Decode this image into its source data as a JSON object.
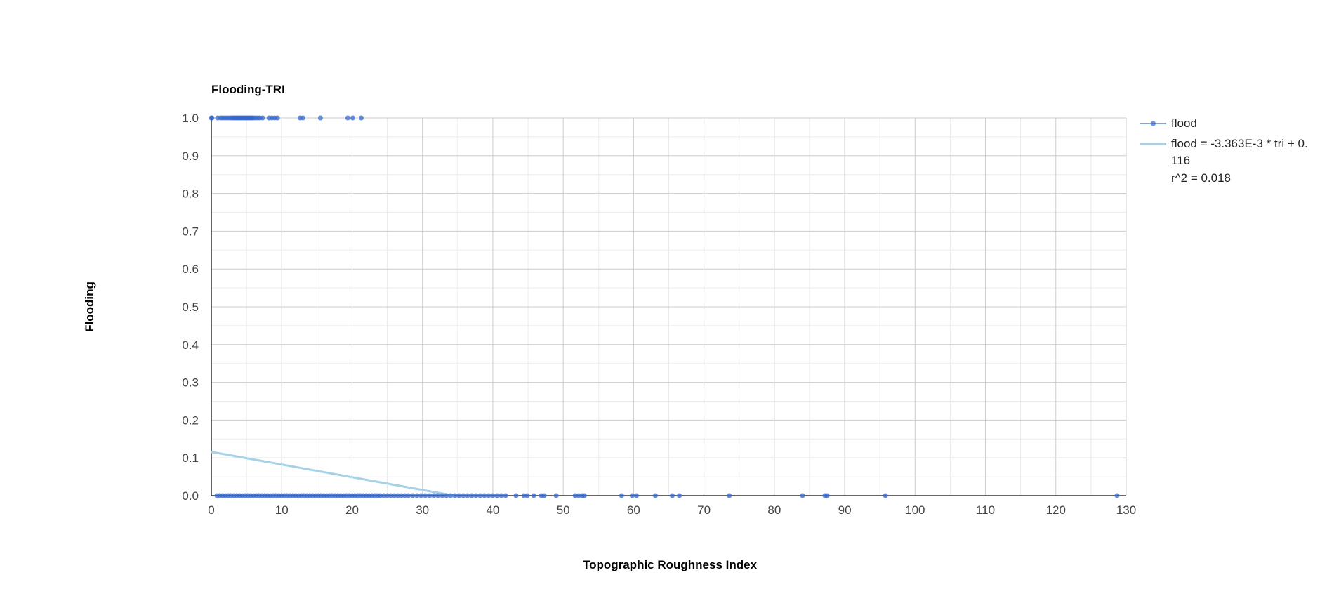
{
  "chart_data": {
    "type": "scatter",
    "title": "Flooding-TRI",
    "xlabel": "Topographic Roughness Index",
    "ylabel": "Flooding",
    "xlim": [
      0,
      130
    ],
    "ylim": [
      0,
      1
    ],
    "x_ticks": [
      "0",
      "10",
      "20",
      "30",
      "40",
      "50",
      "60",
      "70",
      "80",
      "90",
      "100",
      "110",
      "120",
      "130"
    ],
    "y_ticks": [
      "0.0",
      "0.1",
      "0.2",
      "0.3",
      "0.4",
      "0.5",
      "0.6",
      "0.7",
      "0.8",
      "0.9",
      "1.0"
    ],
    "grid": true,
    "legend_position": "right",
    "colors": {
      "points": "#3366cc",
      "trendline": "#a6d1e6",
      "grid_major": "#cccccc",
      "grid_minor": "#ebebeb",
      "axis": "#333333"
    },
    "series": [
      {
        "name": "flood",
        "points_y1_x": [
          0,
          0.1,
          0.9,
          1.3,
          1.6,
          1.9,
          2.2,
          2.5,
          2.8,
          3.0,
          3.2,
          3.4,
          3.6,
          3.8,
          4.0,
          4.2,
          4.4,
          4.6,
          4.8,
          5.0,
          5.2,
          5.4,
          5.6,
          5.8,
          6.0,
          6.3,
          6.6,
          6.9,
          7.3,
          8.2,
          8.6,
          9.0,
          9.4,
          12.6,
          13.0,
          15.5,
          19.4,
          20.1,
          21.3
        ],
        "points_y0_x": [
          0.8,
          1.2,
          1.6,
          2.0,
          2.4,
          2.8,
          3.2,
          3.6,
          4.0,
          4.4,
          4.8,
          5.2,
          5.6,
          6.0,
          6.4,
          6.8,
          7.2,
          7.6,
          8.0,
          8.4,
          8.8,
          9.2,
          9.6,
          10.0,
          10.4,
          10.8,
          11.2,
          11.6,
          12.0,
          12.4,
          12.8,
          13.2,
          13.6,
          14.0,
          14.4,
          14.8,
          15.2,
          15.6,
          16.0,
          16.4,
          16.8,
          17.2,
          17.6,
          18.0,
          18.4,
          18.8,
          19.2,
          19.6,
          20.0,
          20.4,
          20.8,
          21.2,
          21.6,
          22.0,
          22.4,
          22.8,
          23.2,
          23.6,
          24.0,
          24.5,
          25.0,
          25.5,
          26.0,
          26.5,
          27.0,
          27.5,
          28.0,
          28.6,
          29.2,
          29.8,
          30.4,
          31.0,
          31.6,
          32.2,
          32.8,
          33.4,
          34.0,
          34.6,
          35.2,
          35.8,
          36.4,
          37.0,
          37.6,
          38.2,
          38.8,
          39.4,
          40.0,
          40.6,
          41.2,
          41.8,
          43.3,
          44.4,
          44.9,
          45.8,
          46.9,
          47.3,
          49.0,
          51.7,
          52.2,
          52.7,
          53.0,
          58.3,
          59.8,
          60.4,
          63.1,
          65.5,
          66.5,
          73.6,
          84.0,
          87.2,
          87.5,
          95.8,
          128.7
        ]
      },
      {
        "name": "flood = -3.363E-3 * tri + 0.116",
        "subtitle": "r^2 = 0.018",
        "type": "line",
        "x": [
          0,
          34.5
        ],
        "values": [
          0.116,
          0
        ]
      }
    ],
    "legend": [
      {
        "label_line1": "flood",
        "type": "point"
      },
      {
        "label_line1": "flood = -3.363E-3 * tri + 0.",
        "label_line2": "116",
        "label_line3": "r^2 = 0.018",
        "type": "line"
      }
    ]
  }
}
